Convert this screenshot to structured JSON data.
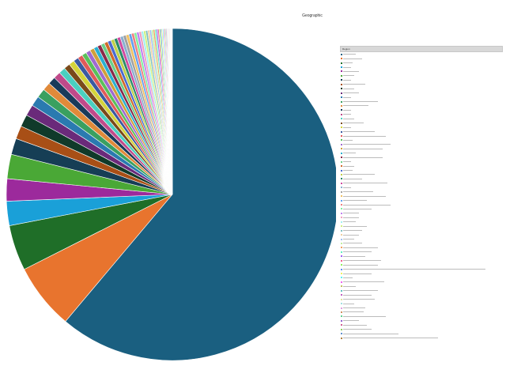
{
  "chart_data": {
    "type": "pie",
    "title": "Geographic",
    "legend_header": "Region",
    "legend_position": "right",
    "palette": [
      "#f58231",
      "#1f7a2e",
      "#1f9fd6",
      "#a02aa0",
      "#4aaa3a",
      "#1a4f6b",
      "#a0521a",
      "#1a5f2a",
      "#b03060",
      "#38c4c4",
      "#e8a040",
      "#3a8ad8",
      "#d44ad4",
      "#2ab0a0",
      "#e04040",
      "#7bc043",
      "#c9b100",
      "#6a4ac9",
      "#e07ab0",
      "#5a5a5a"
    ],
    "values": [
      62.0,
      6.5,
      4.5,
      2.4,
      2.2,
      2.4,
      1.6,
      1.3,
      1.2,
      1.1,
      1.0,
      0.9,
      0.8,
      0.75,
      0.7,
      0.65,
      0.6,
      0.55,
      0.5,
      0.48,
      0.46,
      0.44,
      0.42,
      0.4,
      0.38,
      0.36,
      0.35,
      0.34,
      0.33,
      0.32,
      0.31,
      0.3,
      0.29,
      0.28,
      0.27,
      0.26,
      0.25,
      0.24,
      0.23,
      0.22,
      0.21,
      0.2,
      0.19,
      0.18,
      0.17,
      0.16,
      0.15,
      0.14,
      0.13,
      0.12,
      0.11,
      0.1,
      0.1,
      0.09,
      0.09,
      0.08,
      0.08,
      0.07,
      0.07,
      0.06,
      0.06,
      0.05,
      0.05,
      0.05,
      0.04,
      0.04,
      0.04
    ],
    "colors": [
      "#1a5f80",
      "#e8742e",
      "#1f6e28",
      "#1aa0d8",
      "#9c2a9c",
      "#4aa836",
      "#163e55",
      "#a84f16",
      "#103a2a",
      "#6a2a7a",
      "#2a7ab0",
      "#3aa060",
      "#e08a3a",
      "#1a3a5a",
      "#c04a8a",
      "#4ad0c0",
      "#7a4a1a",
      "#d4d43a",
      "#3a5aa0",
      "#e05a5a",
      "#5ac05a",
      "#a06ad0",
      "#d0a03a",
      "#2ab0d0",
      "#8a2a4a",
      "#6ad08a",
      "#d06a2a",
      "#4a6ad0",
      "#c0d04a",
      "#2a8a6a",
      "#d04aa0",
      "#8ab0d0",
      "#a0a0a0",
      "#f0c060",
      "#60a0f0",
      "#f08080",
      "#80f0a0",
      "#c080f0",
      "#f0a0c0",
      "#a0f0f0",
      "#d0f080",
      "#80c0c0",
      "#f0d0a0",
      "#a0c0f0",
      "#c0f0a0",
      "#f0a060",
      "#60f0c0",
      "#a060f0",
      "#f06090",
      "#90f060",
      "#6090f0",
      "#f0f060",
      "#60f0f0",
      "#f060f0",
      "#c0c060",
      "#60c0c0",
      "#c060c0",
      "#e0e0a0",
      "#a0e0e0",
      "#e0a0e0",
      "#d09060",
      "#60d090",
      "#9060d0",
      "#d06090",
      "#90d060",
      "#6090d0",
      "#b08040"
    ],
    "legend_line_fractions": [
      0.08,
      0.12,
      0.06,
      0.05,
      0.1,
      0.07,
      0.05,
      0.14,
      0.07,
      0.1,
      0.05,
      0.22,
      0.16,
      0.05,
      0.05,
      0.07,
      0.13,
      0.05,
      0.2,
      0.27,
      0.06,
      0.3,
      0.25,
      0.08,
      0.25,
      0.05,
      0.07,
      0.06,
      0.2,
      0.12,
      0.28,
      0.05,
      0.19,
      0.27,
      0.15,
      0.3,
      0.18,
      0.1,
      0.1,
      0.08,
      0.15,
      0.12,
      0.1,
      0.07,
      0.12,
      0.22,
      0.18,
      0.14,
      0.24,
      0.22,
      0.9,
      0.18,
      0.06,
      0.26,
      0.08,
      0.22,
      0.18,
      0.2,
      0.07,
      0.14,
      0.13,
      0.27,
      0.1,
      0.15,
      0.18,
      0.35,
      0.6
    ]
  }
}
